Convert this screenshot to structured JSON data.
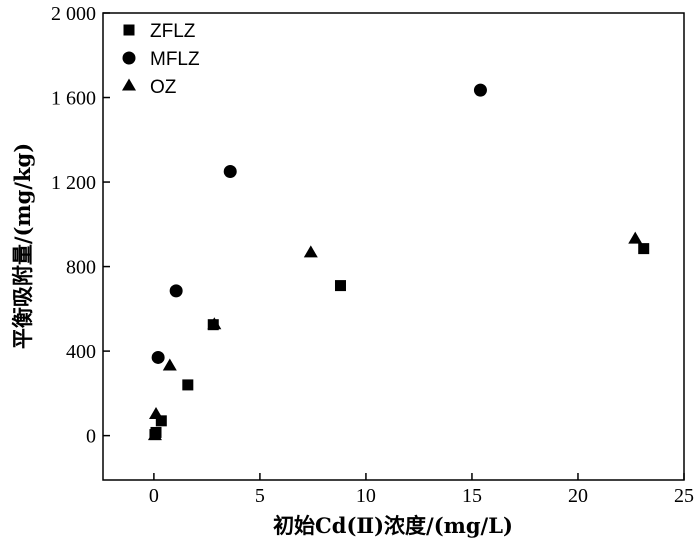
{
  "chart_data": {
    "type": "scatter",
    "xlabel": "初始Cd(Ⅱ)浓度/(mg/L)",
    "ylabel": "平衡吸附量/(mg/kg)",
    "xlim": [
      -2.4,
      25
    ],
    "ylim": [
      -210,
      2000
    ],
    "xticks": [
      0,
      5,
      10,
      15,
      20,
      25
    ],
    "xtick_labels": [
      "0",
      "5",
      "10",
      "15",
      "20",
      "25"
    ],
    "yticks": [
      0,
      400,
      800,
      1200,
      1600,
      2000
    ],
    "ytick_labels": [
      "0",
      "400",
      "800",
      "1 200",
      "1 600",
      "2 000"
    ],
    "grid": false,
    "legend_position": "top-left",
    "series": [
      {
        "name": "ZFLZ",
        "marker": "square",
        "color": "#000000",
        "points": [
          [
            0.05,
            5
          ],
          [
            0.1,
            15
          ],
          [
            0.35,
            70
          ],
          [
            1.6,
            240
          ],
          [
            2.8,
            525
          ],
          [
            8.8,
            710
          ],
          [
            23.1,
            885
          ]
        ]
      },
      {
        "name": "MFLZ",
        "marker": "circle",
        "color": "#000000",
        "points": [
          [
            0.2,
            370
          ],
          [
            1.05,
            685
          ],
          [
            3.6,
            1250
          ],
          [
            15.4,
            1635
          ]
        ]
      },
      {
        "name": "OZ",
        "marker": "triangle",
        "color": "#000000",
        "points": [
          [
            0.05,
            0
          ],
          [
            0.1,
            100
          ],
          [
            0.75,
            330
          ],
          [
            2.85,
            525
          ],
          [
            7.4,
            865
          ],
          [
            22.7,
            930
          ]
        ]
      }
    ]
  }
}
